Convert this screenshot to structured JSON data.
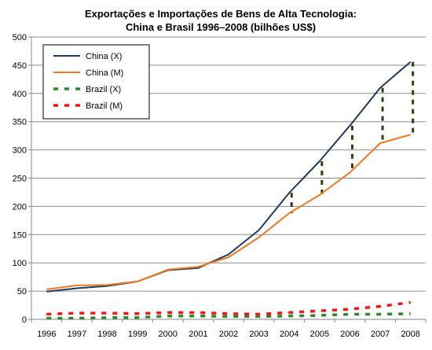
{
  "chart_data": {
    "type": "line",
    "title_line1": "Exportações e Importações de Bens de Alta Tecnologia:",
    "title_line2": "China e Brasil 1996–2008 (bilhões US$)",
    "xlabel": "",
    "ylabel": "",
    "categories": [
      "1996",
      "1997",
      "1998",
      "1999",
      "2000",
      "2001",
      "2002",
      "2003",
      "2004",
      "2005",
      "2006",
      "2007",
      "2008"
    ],
    "ylim": [
      0,
      500
    ],
    "yticks": [
      0,
      50,
      100,
      150,
      200,
      250,
      300,
      350,
      400,
      450,
      500
    ],
    "grid": "horizontal",
    "legend_position": "top-left",
    "series": [
      {
        "name": "China (X)",
        "style": "solid",
        "color": "#1f3a5c",
        "values": [
          49,
          55,
          59,
          67,
          87,
          91,
          115,
          158,
          224,
          280,
          343,
          410,
          456
        ]
      },
      {
        "name": "China (M)",
        "style": "solid",
        "color": "#f07820",
        "values": [
          53,
          60,
          61,
          67,
          88,
          93,
          110,
          145,
          188,
          220,
          260,
          312,
          327
        ]
      },
      {
        "name": "Brazil (X)",
        "style": "dashed",
        "color": "#2a8a2a",
        "values": [
          2,
          2,
          3,
          3,
          6,
          6,
          5,
          5,
          6,
          7,
          9,
          9,
          10
        ]
      },
      {
        "name": "Brazil (M)",
        "style": "dashed",
        "color": "#ff1010",
        "values": [
          9,
          11,
          11,
          10,
          12,
          12,
          10,
          9,
          12,
          15,
          18,
          23,
          30
        ]
      }
    ],
    "gap_markers": {
      "color": "#3a3a10",
      "between": [
        "China (M)",
        "China (X)"
      ]
    }
  }
}
